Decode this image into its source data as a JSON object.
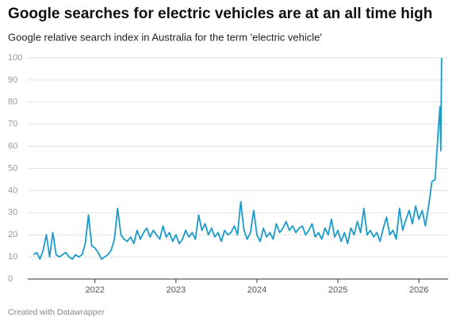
{
  "chart_data": {
    "type": "line",
    "title": "Google searches for electric vehicles are at an all time high",
    "subtitle": "Google relative search index in Australia for the term 'electric vehicle'",
    "source": "Created with Datawrapper",
    "xlim": [
      2021.17,
      2026.36
    ],
    "xticks": [
      2022,
      2023,
      2024,
      2025,
      2026
    ],
    "ylim": [
      0,
      100
    ],
    "yticks": [
      0,
      10,
      20,
      30,
      40,
      50,
      60,
      70,
      80,
      90,
      100
    ],
    "grid": true,
    "x": [
      2021.24,
      2021.28,
      2021.32,
      2021.36,
      2021.4,
      2021.44,
      2021.48,
      2021.52,
      2021.56,
      2021.6,
      2021.64,
      2021.68,
      2021.72,
      2021.76,
      2021.8,
      2021.84,
      2021.88,
      2021.92,
      2021.96,
      2022.0,
      2022.04,
      2022.08,
      2022.12,
      2022.16,
      2022.2,
      2022.24,
      2022.28,
      2022.32,
      2022.36,
      2022.4,
      2022.44,
      2022.48,
      2022.52,
      2022.56,
      2022.6,
      2022.64,
      2022.68,
      2022.72,
      2022.76,
      2022.8,
      2022.84,
      2022.88,
      2022.92,
      2022.96,
      2023.0,
      2023.04,
      2023.08,
      2023.12,
      2023.16,
      2023.2,
      2023.24,
      2023.28,
      2023.32,
      2023.36,
      2023.4,
      2023.44,
      2023.48,
      2023.52,
      2023.56,
      2023.6,
      2023.64,
      2023.68,
      2023.72,
      2023.76,
      2023.8,
      2023.84,
      2023.88,
      2023.92,
      2023.96,
      2024.0,
      2024.04,
      2024.08,
      2024.12,
      2024.16,
      2024.2,
      2024.24,
      2024.28,
      2024.32,
      2024.36,
      2024.4,
      2024.44,
      2024.48,
      2024.52,
      2024.56,
      2024.6,
      2024.64,
      2024.68,
      2024.72,
      2024.76,
      2024.8,
      2024.84,
      2024.88,
      2024.92,
      2024.96,
      2025.0,
      2025.04,
      2025.08,
      2025.12,
      2025.16,
      2025.2,
      2025.24,
      2025.28,
      2025.32,
      2025.36,
      2025.4,
      2025.44,
      2025.48,
      2025.52,
      2025.56,
      2025.6,
      2025.64,
      2025.68,
      2025.72,
      2025.76,
      2025.8,
      2025.84,
      2025.88,
      2025.92,
      2025.96,
      2026.0,
      2026.04,
      2026.08,
      2026.12,
      2026.16,
      2026.2,
      2026.24,
      2026.26,
      2026.27,
      2026.28
    ],
    "series": [
      {
        "name": "electric vehicle",
        "color": "#1a9bc9",
        "values": [
          11,
          12,
          9,
          13,
          20,
          10,
          21,
          11,
          10,
          11,
          12,
          10,
          9,
          11,
          10,
          11,
          16,
          29,
          15,
          14,
          12,
          9,
          10,
          11,
          13,
          18,
          32,
          20,
          18,
          17,
          19,
          16,
          22,
          18,
          21,
          23,
          19,
          22,
          20,
          18,
          24,
          19,
          21,
          17,
          20,
          16,
          18,
          22,
          19,
          21,
          18,
          29,
          22,
          25,
          20,
          23,
          19,
          21,
          17,
          22,
          20,
          21,
          24,
          20,
          35,
          22,
          18,
          21,
          31,
          20,
          17,
          23,
          19,
          21,
          18,
          25,
          21,
          23,
          26,
          22,
          24,
          21,
          23,
          24,
          20,
          22,
          25,
          19,
          21,
          18,
          23,
          20,
          27,
          19,
          22,
          17,
          21,
          16,
          23,
          20,
          26,
          21,
          32,
          20,
          22,
          19,
          21,
          17,
          23,
          28,
          20,
          22,
          18,
          32,
          22,
          27,
          31,
          25,
          33,
          27,
          31,
          24,
          33,
          44,
          45,
          68,
          78,
          58,
          100
        ]
      }
    ]
  }
}
